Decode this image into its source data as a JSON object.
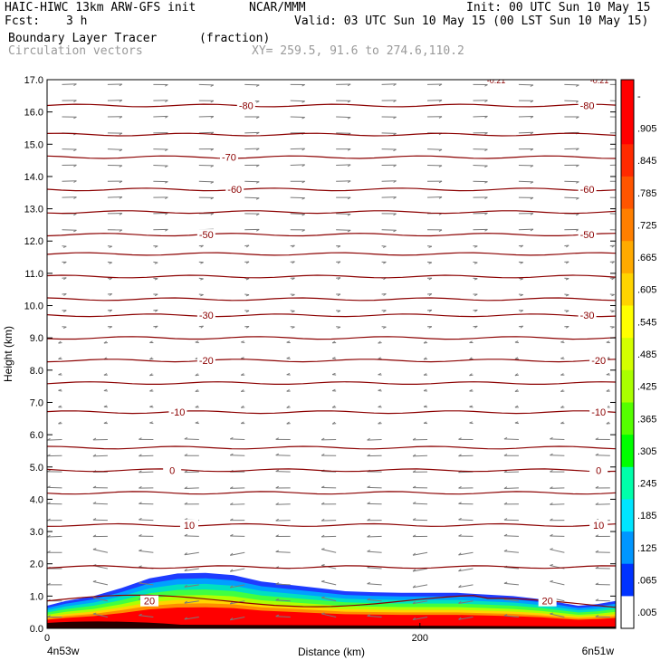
{
  "header": {
    "model_line": "HAIC-HIWC 13km ARW-GFS init",
    "org": "NCAR/MMM",
    "init": "Init: 00 UTC Sun 10 May 15",
    "fcst_label": "Fcst:",
    "fcst_value": "3 h",
    "valid": "Valid: 03 UTC Sun 10 May 15 (00 LST Sun 10 May 15)",
    "field_name": "Boundary Layer Tracer",
    "field_units": "(fraction)",
    "vectors_label": "Circulation vectors",
    "xy": "XY= 259.5, 91.6 to 274.6,110.2"
  },
  "chart_data": {
    "type": "heatmap",
    "ylabel": "Height (km)",
    "xlabel": "Distance (km)",
    "x_range": [
      0,
      305
    ],
    "ylim": [
      0,
      17
    ],
    "y_ticks": [
      "0.0",
      "1.0",
      "2.0",
      "3.0",
      "4.0",
      "5.0",
      "6.0",
      "7.0",
      "8.0",
      "9.0",
      "10.0",
      "11.0",
      "12.0",
      "13.0",
      "14.0",
      "15.0",
      "16.0",
      "17.0"
    ],
    "x_ticks": [
      {
        "value": 0,
        "label": "0"
      },
      {
        "value": 200,
        "label": "200"
      }
    ],
    "x_end_labels": {
      "left": "4n53w",
      "right": "6n51w"
    },
    "colorbar": {
      "labels": [
        "-",
        ".905",
        ".845",
        ".785",
        ".725",
        ".665",
        ".605",
        ".545",
        ".485",
        ".425",
        ".365",
        ".305",
        ".245",
        ".185",
        ".125",
        ".065",
        ".005"
      ],
      "colors": [
        "#ff0000",
        "#ff0000",
        "#ff2a00",
        "#ff5500",
        "#ff7f00",
        "#ffaa00",
        "#ffd400",
        "#ffff00",
        "#d4ff00",
        "#aaff00",
        "#55ff00",
        "#00ff00",
        "#00ffaa",
        "#00e5ff",
        "#0096ff",
        "#0032ff",
        "#ffffff"
      ]
    },
    "contours": [
      {
        "z": 16.2,
        "label": "-80",
        "label_pos": [
          0.35,
          0.95
        ]
      },
      {
        "z": 15.3,
        "label": ""
      },
      {
        "z": 14.6,
        "label": "-70",
        "label_pos": [
          0.32
        ]
      },
      {
        "z": 13.6,
        "label": "-60",
        "label_pos": [
          0.33,
          0.95
        ]
      },
      {
        "z": 12.9,
        "label": ""
      },
      {
        "z": 12.2,
        "label": "-50",
        "label_pos": [
          0.28,
          0.95
        ]
      },
      {
        "z": 11.6,
        "label": ""
      },
      {
        "z": 10.9,
        "label": ""
      },
      {
        "z": 10.2,
        "label": ""
      },
      {
        "z": 9.7,
        "label": "-30",
        "label_pos": [
          0.28,
          0.95
        ]
      },
      {
        "z": 9.0,
        "label": ""
      },
      {
        "z": 8.3,
        "label": "-20",
        "label_pos": [
          0.28,
          0.97
        ]
      },
      {
        "z": 7.6,
        "label": ""
      },
      {
        "z": 6.7,
        "label": "-10",
        "label_pos": [
          0.23,
          0.97
        ]
      },
      {
        "z": 5.6,
        "label": ""
      },
      {
        "z": 4.9,
        "label": "0",
        "label_pos": [
          0.22,
          0.97
        ]
      },
      {
        "z": 4.2,
        "label": ""
      },
      {
        "z": 3.2,
        "label": "10",
        "label_pos": [
          0.25,
          0.97
        ]
      },
      {
        "z": 1.9,
        "label": ""
      },
      {
        "z": 0.85,
        "label": "20",
        "label_pos": [
          0.18,
          0.88
        ]
      }
    ],
    "contour_top_labels": [
      "-0.21",
      "-0.21"
    ],
    "tracer_top_km": [
      [
        0,
        0.7
      ],
      [
        10,
        0.85
      ],
      [
        25,
        1.0
      ],
      [
        40,
        1.25
      ],
      [
        55,
        1.55
      ],
      [
        70,
        1.7
      ],
      [
        85,
        1.72
      ],
      [
        100,
        1.65
      ],
      [
        115,
        1.45
      ],
      [
        130,
        1.35
      ],
      [
        145,
        1.25
      ],
      [
        160,
        1.15
      ],
      [
        175,
        1.12
      ],
      [
        190,
        1.1
      ],
      [
        205,
        1.1
      ],
      [
        220,
        1.1
      ],
      [
        235,
        1.05
      ],
      [
        250,
        1.0
      ],
      [
        265,
        0.9
      ],
      [
        275,
        0.8
      ],
      [
        285,
        0.7
      ],
      [
        295,
        0.75
      ],
      [
        305,
        0.85
      ]
    ]
  }
}
